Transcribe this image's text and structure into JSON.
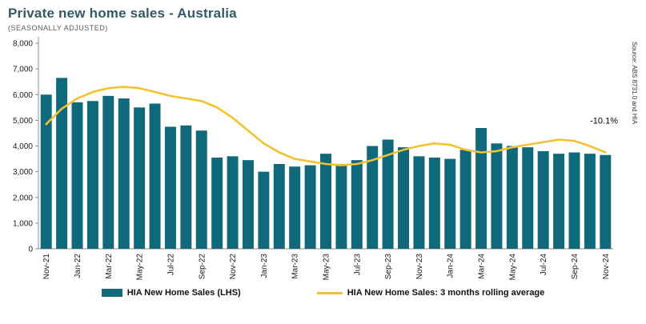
{
  "header": {
    "title": "Private new home sales - Australia",
    "subtitle": "(SEASONALLY ADJUSTED)"
  },
  "legend": {
    "bars_label": "HIA New Home Sales (LHS)",
    "line_label": "HIA New Home Sales: 3 months rolling average"
  },
  "source_note": "Source: ABS 8731.0 and HIA",
  "colors": {
    "bar": "#10697A",
    "line": "#F2C233",
    "axis_text": "#1a1a1a",
    "axis_line": "#8c8c8c",
    "title": "#335A64"
  },
  "chart_data": {
    "type": "bar",
    "title": "Private new home sales - Australia",
    "subtitle": "(SEASONALLY ADJUSTED)",
    "ylim": [
      0,
      8000
    ],
    "ytick_step": 1000,
    "xtick_every": 2,
    "grid": false,
    "legend_position": "bottom",
    "categories": [
      "Nov-21",
      "Dec-21",
      "Jan-22",
      "Feb-22",
      "Mar-22",
      "Apr-22",
      "May-22",
      "Jun-22",
      "Jul-22",
      "Aug-22",
      "Sep-22",
      "Oct-22",
      "Nov-22",
      "Dec-22",
      "Jan-23",
      "Feb-23",
      "Mar-23",
      "Apr-23",
      "May-23",
      "Jun-23",
      "Jul-23",
      "Aug-23",
      "Sep-23",
      "Oct-23",
      "Nov-23",
      "Dec-23",
      "Jan-24",
      "Feb-24",
      "Mar-24",
      "Apr-24",
      "May-24",
      "Jun-24",
      "Jul-24",
      "Aug-24",
      "Sep-24",
      "Oct-24",
      "Nov-24"
    ],
    "series": [
      {
        "name": "HIA New Home Sales (LHS)",
        "type": "bar",
        "values": [
          6000,
          6650,
          5700,
          5750,
          5950,
          5850,
          5500,
          5650,
          4750,
          4800,
          4600,
          3550,
          3600,
          3450,
          3000,
          3300,
          3200,
          3250,
          3700,
          3300,
          3450,
          4000,
          4250,
          3950,
          3600,
          3550,
          3500,
          3850,
          4700,
          4100,
          4000,
          3950,
          3800,
          3700,
          3750,
          3700,
          3650
        ]
      },
      {
        "name": "HIA New Home Sales: 3 months rolling average",
        "type": "line",
        "values": [
          4850,
          5450,
          5850,
          6100,
          6250,
          6300,
          6250,
          6100,
          5950,
          5850,
          5750,
          5500,
          5100,
          4600,
          4100,
          3750,
          3500,
          3400,
          3300,
          3250,
          3300,
          3450,
          3650,
          3850,
          4000,
          4100,
          4050,
          3850,
          3750,
          3800,
          3950,
          4050,
          4150,
          4250,
          4200,
          4000,
          3750
        ]
      }
    ],
    "annotation": {
      "label": "-10.1%",
      "x_index": 36,
      "value": 5000
    }
  }
}
